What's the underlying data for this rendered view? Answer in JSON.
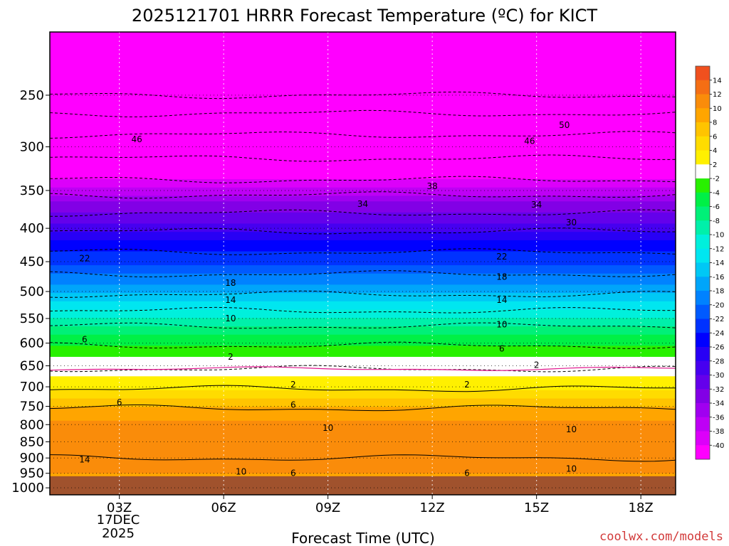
{
  "chart_data": {
    "type": "heatmap",
    "title": "2025121701 HRRR Forecast Temperature (ºC) for KICT",
    "xlabel": "Forecast Time (UTC)",
    "x_ticks": [
      "03Z",
      "06Z",
      "09Z",
      "12Z",
      "15Z",
      "18Z"
    ],
    "x_tick_hours": [
      3,
      6,
      9,
      12,
      15,
      18
    ],
    "x_range_hours": [
      1,
      19
    ],
    "date_label": [
      "17DEC",
      "2025"
    ],
    "y_ticks": [
      250,
      300,
      350,
      400,
      450,
      500,
      550,
      600,
      650,
      700,
      750,
      800,
      850,
      900,
      950,
      1000
    ],
    "y_range_hPa": [
      200,
      1025
    ],
    "y_scale": "log, pressure decreasing upward",
    "surface_pressure_hPa": 960,
    "colorbar": {
      "ticks": [
        14,
        12,
        10,
        8,
        6,
        4,
        2,
        -2,
        -4,
        -6,
        -8,
        -10,
        -12,
        -14,
        -16,
        -18,
        -20,
        -22,
        -24,
        -26,
        -28,
        -30,
        -32,
        -34,
        -36,
        -38,
        -40
      ],
      "bands": [
        {
          "lo": 14,
          "hi": 16,
          "color": "#f0501e"
        },
        {
          "lo": 12,
          "hi": 14,
          "color": "#f56e14"
        },
        {
          "lo": 10,
          "hi": 12,
          "color": "#fa8c0a"
        },
        {
          "lo": 8,
          "hi": 10,
          "color": "#ffa500"
        },
        {
          "lo": 6,
          "hi": 8,
          "color": "#ffc400"
        },
        {
          "lo": 4,
          "hi": 6,
          "color": "#ffdc00"
        },
        {
          "lo": 2,
          "hi": 4,
          "color": "#fff000"
        },
        {
          "lo": -2,
          "hi": 2,
          "color": "#ffffff"
        },
        {
          "lo": -4,
          "hi": -2,
          "color": "#28f000"
        },
        {
          "lo": -6,
          "hi": -4,
          "color": "#00f046"
        },
        {
          "lo": -8,
          "hi": -6,
          "color": "#00f078"
        },
        {
          "lo": -10,
          "hi": -8,
          "color": "#00f0aa"
        },
        {
          "lo": -12,
          "hi": -10,
          "color": "#00f0dc"
        },
        {
          "lo": -14,
          "hi": -12,
          "color": "#00e6f0"
        },
        {
          "lo": -16,
          "hi": -14,
          "color": "#00c8f5"
        },
        {
          "lo": -18,
          "hi": -16,
          "color": "#00a5fa"
        },
        {
          "lo": -20,
          "hi": -18,
          "color": "#0082ff"
        },
        {
          "lo": -22,
          "hi": -20,
          "color": "#005aff"
        },
        {
          "lo": -24,
          "hi": -22,
          "color": "#0032ff"
        },
        {
          "lo": -26,
          "hi": -24,
          "color": "#0000ff"
        },
        {
          "lo": -28,
          "hi": -26,
          "color": "#2800f5"
        },
        {
          "lo": -30,
          "hi": -28,
          "color": "#4600f0"
        },
        {
          "lo": -32,
          "hi": -30,
          "color": "#6400eb"
        },
        {
          "lo": -34,
          "hi": -32,
          "color": "#8200e6"
        },
        {
          "lo": -36,
          "hi": -34,
          "color": "#a000f0"
        },
        {
          "lo": -38,
          "hi": -36,
          "color": "#be00f5"
        },
        {
          "lo": -40,
          "hi": -38,
          "color": "#dc00fa"
        },
        {
          "lo": -60,
          "hi": -40,
          "color": "#ff00ff"
        }
      ],
      "surface_color": "#a0522d",
      "freezing_line_color": "#e0148c"
    },
    "temperature_profile": [
      {
        "p": 200,
        "t": -55
      },
      {
        "p": 250,
        "t": -56
      },
      {
        "p": 275,
        "t": -50
      },
      {
        "p": 300,
        "t": -46
      },
      {
        "p": 325,
        "t": -42
      },
      {
        "p": 337,
        "t": -40
      },
      {
        "p": 365,
        "t": -34
      },
      {
        "p": 393,
        "t": -30
      },
      {
        "p": 410,
        "t": -27
      },
      {
        "p": 435,
        "t": -24
      },
      {
        "p": 455,
        "t": -22
      },
      {
        "p": 470,
        "t": -20
      },
      {
        "p": 490,
        "t": -18
      },
      {
        "p": 505,
        "t": -16
      },
      {
        "p": 520,
        "t": -14
      },
      {
        "p": 535,
        "t": -12
      },
      {
        "p": 548,
        "t": -10
      },
      {
        "p": 565,
        "t": -8
      },
      {
        "p": 585,
        "t": -6
      },
      {
        "p": 605,
        "t": -4
      },
      {
        "p": 628,
        "t": -2
      },
      {
        "p": 657,
        "t": 0
      },
      {
        "p": 675,
        "t": 2
      },
      {
        "p": 705,
        "t": 4
      },
      {
        "p": 730,
        "t": 6
      },
      {
        "p": 755,
        "t": 8
      },
      {
        "p": 790,
        "t": 10
      },
      {
        "p": 860,
        "t": 11
      },
      {
        "p": 900,
        "t": 12
      },
      {
        "p": 935,
        "t": 11
      },
      {
        "p": 960,
        "t": 9
      }
    ],
    "contour_labels": [
      {
        "text": "46",
        "hour": 3.5,
        "p": 292
      },
      {
        "text": "46",
        "hour": 14.8,
        "p": 294
      },
      {
        "text": "50",
        "hour": 15.8,
        "p": 278
      },
      {
        "text": "38",
        "hour": 12.0,
        "p": 345
      },
      {
        "text": "34",
        "hour": 10.0,
        "p": 367
      },
      {
        "text": "34",
        "hour": 15.0,
        "p": 368
      },
      {
        "text": "30",
        "hour": 16.0,
        "p": 392
      },
      {
        "text": "22",
        "hour": 2.0,
        "p": 445
      },
      {
        "text": "22",
        "hour": 14.0,
        "p": 442
      },
      {
        "text": "18",
        "hour": 6.2,
        "p": 485
      },
      {
        "text": "18",
        "hour": 14.0,
        "p": 475
      },
      {
        "text": "14",
        "hour": 6.2,
        "p": 515
      },
      {
        "text": "14",
        "hour": 14.0,
        "p": 515
      },
      {
        "text": "10",
        "hour": 6.2,
        "p": 550
      },
      {
        "text": "10",
        "hour": 14.0,
        "p": 562
      },
      {
        "text": "6",
        "hour": 2.0,
        "p": 592
      },
      {
        "text": "6",
        "hour": 14.0,
        "p": 612
      },
      {
        "text": "2",
        "hour": 6.2,
        "p": 630
      },
      {
        "text": "2",
        "hour": 15.0,
        "p": 648
      },
      {
        "text": "2",
        "hour": 8.0,
        "p": 695
      },
      {
        "text": "2",
        "hour": 13.0,
        "p": 695
      },
      {
        "text": "6",
        "hour": 3.0,
        "p": 740
      },
      {
        "text": "6",
        "hour": 8.0,
        "p": 746
      },
      {
        "text": "10",
        "hour": 9.0,
        "p": 810
      },
      {
        "text": "10",
        "hour": 16.0,
        "p": 814
      },
      {
        "text": "14",
        "hour": 2.0,
        "p": 905
      },
      {
        "text": "10",
        "hour": 6.5,
        "p": 945
      },
      {
        "text": "6",
        "hour": 8.0,
        "p": 950
      },
      {
        "text": "6",
        "hour": 13.0,
        "p": 950
      },
      {
        "text": "10",
        "hour": 16.0,
        "p": 935
      }
    ],
    "credit": "coolwx.com/models"
  }
}
